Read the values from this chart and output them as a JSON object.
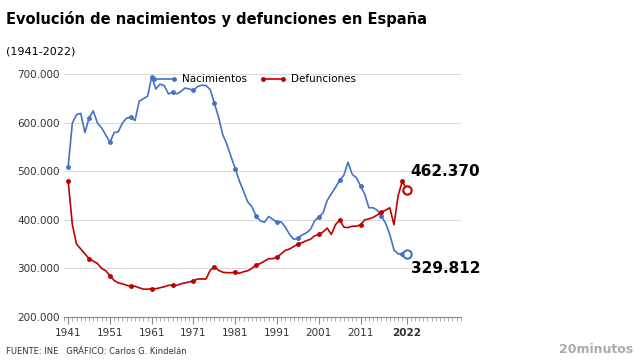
{
  "title": "Evolución de nacimientos y defunciones en España",
  "subtitle": "(1941-2022)",
  "ylim": [
    200000,
    720000
  ],
  "yticks": [
    200000,
    300000,
    400000,
    500000,
    600000,
    700000
  ],
  "ytick_labels": [
    "200.000",
    "300.000",
    "400.000",
    "500.000",
    "600.000",
    "700.000"
  ],
  "xticks": [
    1941,
    1951,
    1961,
    1971,
    1981,
    1991,
    2001,
    2011,
    2022
  ],
  "legend_nacimientos": "Nacimientos",
  "legend_defunciones": "Defunciones",
  "color_nacimientos": "#4472C4",
  "color_defunciones": "#C00000",
  "label_462": "462.370",
  "label_329": "329.812",
  "source_text": "FUENTE: INE   GRÁFICO: Carlos G. Kindelán",
  "brand": "20minutos",
  "nac_years": [
    1941,
    1942,
    1943,
    1944,
    1945,
    1946,
    1947,
    1948,
    1949,
    1950,
    1951,
    1952,
    1953,
    1954,
    1955,
    1956,
    1957,
    1958,
    1959,
    1960,
    1961,
    1962,
    1963,
    1964,
    1965,
    1966,
    1967,
    1968,
    1969,
    1970,
    1971,
    1972,
    1973,
    1974,
    1975,
    1976,
    1977,
    1978,
    1979,
    1980,
    1981,
    1982,
    1983,
    1984,
    1985,
    1986,
    1987,
    1988,
    1989,
    1990,
    1991,
    1992,
    1993,
    1994,
    1995,
    1996,
    1997,
    1998,
    1999,
    2000,
    2001,
    2002,
    2003,
    2004,
    2005,
    2006,
    2007,
    2008,
    2009,
    2010,
    2011,
    2012,
    2013,
    2014,
    2015,
    2016,
    2017,
    2018,
    2019,
    2020,
    2021,
    2022
  ],
  "nac_vals": [
    510000,
    600000,
    617000,
    620000,
    580000,
    610000,
    625000,
    600000,
    590000,
    575000,
    560000,
    580000,
    582000,
    600000,
    610000,
    612000,
    605000,
    645000,
    650000,
    655000,
    695000,
    670000,
    680000,
    677000,
    660000,
    663000,
    660000,
    665000,
    672000,
    670000,
    668000,
    675000,
    678000,
    677000,
    669000,
    641000,
    612000,
    576000,
    556000,
    530000,
    506000,
    480000,
    459000,
    437000,
    427000,
    408000,
    398000,
    395000,
    407000,
    401000,
    395000,
    396000,
    385000,
    370000,
    360000,
    362000,
    369000,
    373000,
    380000,
    398000,
    406000,
    414000,
    440000,
    454000,
    467000,
    482000,
    492000,
    519000,
    494000,
    487000,
    470000,
    453000,
    425000,
    425000,
    420000,
    408000,
    393000,
    370000,
    338000,
    329812,
    329812,
    329812
  ],
  "def_years": [
    1941,
    1942,
    1943,
    1944,
    1945,
    1946,
    1947,
    1948,
    1949,
    1950,
    1951,
    1952,
    1953,
    1954,
    1955,
    1956,
    1957,
    1958,
    1959,
    1960,
    1961,
    1962,
    1963,
    1964,
    1965,
    1966,
    1967,
    1968,
    1969,
    1970,
    1971,
    1972,
    1973,
    1974,
    1975,
    1976,
    1977,
    1978,
    1979,
    1980,
    1981,
    1982,
    1983,
    1984,
    1985,
    1986,
    1987,
    1988,
    1989,
    1990,
    1991,
    1992,
    1993,
    1994,
    1995,
    1996,
    1997,
    1998,
    1999,
    2000,
    2001,
    2002,
    2003,
    2004,
    2005,
    2006,
    2007,
    2008,
    2009,
    2010,
    2011,
    2012,
    2013,
    2014,
    2015,
    2016,
    2017,
    2018,
    2019,
    2020,
    2021,
    2022
  ],
  "def_vals": [
    480000,
    390000,
    350000,
    340000,
    330000,
    320000,
    315000,
    310000,
    300000,
    295000,
    285000,
    275000,
    270000,
    268000,
    265000,
    263000,
    263000,
    260000,
    257000,
    257000,
    258000,
    258000,
    260000,
    262000,
    265000,
    265000,
    265000,
    268000,
    270000,
    272000,
    274000,
    278000,
    278000,
    278000,
    296000,
    303000,
    296000,
    292000,
    291000,
    291000,
    292000,
    290000,
    293000,
    295000,
    300000,
    307000,
    310000,
    315000,
    320000,
    320000,
    323000,
    330000,
    337000,
    340000,
    345000,
    350000,
    353000,
    357000,
    360000,
    367000,
    370000,
    375000,
    383000,
    370000,
    390000,
    400000,
    385000,
    384000,
    387000,
    387000,
    390000,
    400000,
    402000,
    405000,
    410000,
    416000,
    420000,
    425000,
    390000,
    450000,
    480000,
    462370
  ]
}
